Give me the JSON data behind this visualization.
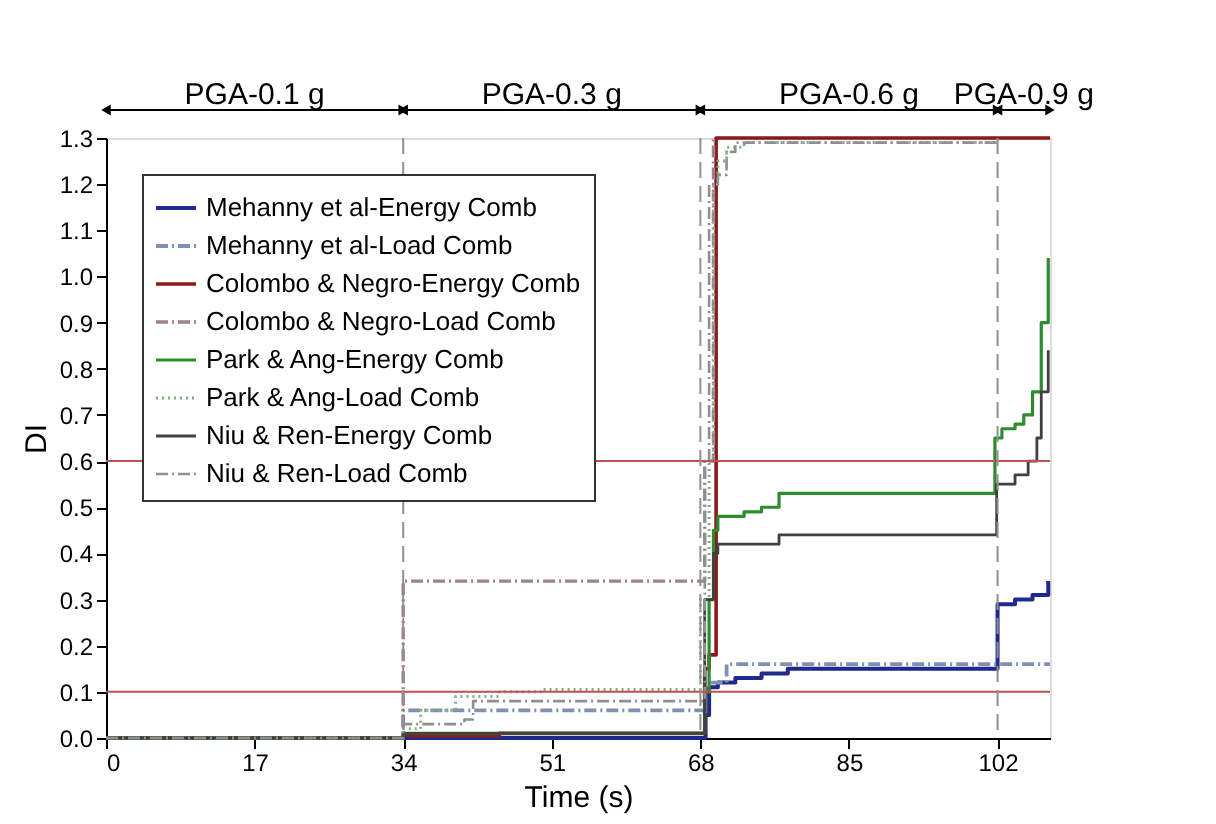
{
  "chart_data": {
    "type": "step",
    "xlabel": "Time (s)",
    "ylabel": "DI",
    "xlim": [
      0,
      108
    ],
    "xticks": [
      0,
      17,
      34,
      51,
      68,
      85,
      102
    ],
    "ylim": [
      0,
      1.3
    ],
    "yticks": [
      {
        "value": 0,
        "label": "0.0"
      },
      0.1,
      0.2,
      0.3,
      0.4,
      0.5,
      0.6,
      0.7,
      0.8,
      0.9,
      {
        "value": 1,
        "label": "1.0"
      },
      1.1,
      1.2,
      1.3
    ],
    "grid": false,
    "legend": "top left",
    "series": [
      {
        "name": "Mehanny et al-Energy Comb",
        "color": "#1f2a8c",
        "line_style": "solid",
        "x": [
          0,
          68.5,
          68.6,
          69,
          70,
          72,
          75,
          78,
          101.9,
          102,
          104,
          106,
          107.8
        ],
        "values": [
          0.0,
          0.0,
          0.05,
          0.11,
          0.12,
          0.13,
          0.14,
          0.15,
          0.15,
          0.29,
          0.3,
          0.31,
          0.34
        ]
      },
      {
        "name": "Mehanny et al-Load Comb",
        "color": "#8090b0",
        "line_style": "dashed",
        "x": [
          0,
          34,
          68,
          68.5,
          71,
          108
        ],
        "values": [
          0.0,
          0.06,
          0.06,
          0.12,
          0.16,
          0.16
        ]
      },
      {
        "name": "Colombo & Negro-Energy Comb",
        "color": "#8b1a1a",
        "line_style": "solid",
        "x": [
          0,
          34,
          45,
          68.5,
          69,
          69.8,
          108
        ],
        "values": [
          0.0,
          0.005,
          0.01,
          0.15,
          0.18,
          1.3,
          1.3
        ]
      },
      {
        "name": "Colombo & Negro-Load Comb",
        "color": "#a08090",
        "line_style": "dashed",
        "x": [
          0,
          34,
          68,
          68.5,
          69.5
        ],
        "values": [
          0.0,
          0.34,
          0.34,
          0.6,
          1.3
        ]
      },
      {
        "name": "Park & Ang-Energy Comb",
        "color": "#2e8b2e",
        "line_style": "solid",
        "x": [
          0,
          34,
          68.5,
          69,
          69.5,
          70,
          73,
          75,
          77,
          101.7,
          102.5,
          104,
          105,
          106,
          107,
          107.8
        ],
        "values": [
          0.0,
          0.01,
          0.1,
          0.3,
          0.45,
          0.48,
          0.49,
          0.5,
          0.53,
          0.65,
          0.67,
          0.68,
          0.7,
          0.75,
          0.9,
          1.04
        ]
      },
      {
        "name": "Park & Ang-Load Comb",
        "color": "#80b080",
        "line_style": "dotted",
        "x": [
          0,
          34,
          36,
          40,
          45,
          50,
          68,
          69,
          69.5,
          70,
          71,
          73,
          75,
          102
        ],
        "values": [
          0.0,
          0.02,
          0.06,
          0.09,
          0.1,
          0.105,
          0.3,
          0.6,
          1.2,
          1.25,
          1.28,
          1.29,
          1.29,
          1.29
        ]
      },
      {
        "name": "Niu & Ren-Energy Comb",
        "color": "#404040",
        "line_style": "solid",
        "x": [
          0,
          34,
          68.5,
          69.5,
          70,
          77,
          101.9,
          104,
          105.5,
          106.5,
          107,
          107.8
        ],
        "values": [
          0.0,
          0.01,
          0.3,
          0.4,
          0.42,
          0.44,
          0.55,
          0.57,
          0.6,
          0.65,
          0.75,
          0.84
        ]
      },
      {
        "name": "Niu & Ren-Load Comb",
        "color": "#909090",
        "line_style": "dashed",
        "x": [
          0,
          34,
          41,
          42,
          68,
          68.5,
          69,
          70,
          71,
          72,
          102
        ],
        "values": [
          0.0,
          0.03,
          0.04,
          0.08,
          0.08,
          0.6,
          1.2,
          1.22,
          1.27,
          1.29,
          1.29
        ]
      }
    ],
    "ref_lines": [
      {
        "axis": "y",
        "value": 0.6,
        "color": "#c05050",
        "line_style": "solid"
      },
      {
        "axis": "y",
        "value": 0.1,
        "color": "#c05050",
        "line_style": "solid"
      },
      {
        "axis": "x",
        "value": 34,
        "color": "#909090",
        "line_style": "dashed"
      },
      {
        "axis": "x",
        "value": 68,
        "color": "#909090",
        "line_style": "dashed"
      },
      {
        "axis": "x",
        "value": 102,
        "color": "#909090",
        "line_style": "dashed"
      }
    ],
    "annotations": [
      "PGA-0.1 g",
      "PGA-0.3 g",
      "PGA-0.6 g",
      "PGA-0.9 g"
    ]
  }
}
